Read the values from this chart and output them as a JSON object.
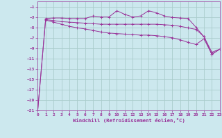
{
  "xlabel": "Windchill (Refroidissement éolien,°C)",
  "background_color": "#cce8ee",
  "grid_color": "#aacccc",
  "line_color": "#993399",
  "xlim": [
    0,
    23
  ],
  "ylim": [
    -21,
    0
  ],
  "yticks": [
    -1,
    -3,
    -5,
    -7,
    -9,
    -11,
    -13,
    -15,
    -17,
    -19,
    -21
  ],
  "xticks": [
    0,
    1,
    2,
    3,
    4,
    5,
    6,
    7,
    8,
    9,
    10,
    11,
    12,
    13,
    14,
    15,
    16,
    17,
    18,
    19,
    20,
    21,
    22,
    23
  ],
  "line1_x": [
    0,
    1,
    2,
    3,
    4,
    5,
    6,
    7,
    8,
    9,
    10,
    11,
    12,
    13,
    14,
    15,
    16,
    17,
    18,
    19,
    20,
    21,
    22,
    23
  ],
  "line1_y": [
    -21,
    -3.3,
    -3.2,
    -3.2,
    -3.3,
    -3.3,
    -3.3,
    -2.8,
    -3.0,
    -3.0,
    -1.8,
    -2.5,
    -3.0,
    -2.8,
    -1.8,
    -2.2,
    -2.8,
    -3.1,
    -3.2,
    -3.3,
    -5.0,
    -6.8,
    -10.2,
    -9.2
  ],
  "line2_x": [
    0,
    1,
    2,
    3,
    4,
    5,
    6,
    7,
    8,
    9,
    10,
    11,
    12,
    13,
    14,
    15,
    16,
    17,
    18,
    19,
    20,
    21,
    22,
    23
  ],
  "line2_y": [
    -21,
    -3.5,
    -3.7,
    -3.9,
    -4.0,
    -4.1,
    -4.2,
    -4.3,
    -4.4,
    -4.4,
    -4.4,
    -4.4,
    -4.4,
    -4.4,
    -4.4,
    -4.4,
    -4.5,
    -4.6,
    -4.8,
    -5.1,
    -5.4,
    -6.8,
    -9.8,
    -9.2
  ],
  "line3_x": [
    1,
    2,
    3,
    4,
    5,
    6,
    7,
    8,
    9,
    10,
    11,
    12,
    13,
    14,
    15,
    16,
    17,
    18,
    19,
    20,
    21,
    22,
    23
  ],
  "line3_y": [
    -3.6,
    -4.0,
    -4.4,
    -4.8,
    -5.1,
    -5.3,
    -5.6,
    -5.9,
    -6.1,
    -6.2,
    -6.3,
    -6.4,
    -6.5,
    -6.5,
    -6.6,
    -6.8,
    -7.0,
    -7.4,
    -7.9,
    -8.3,
    -7.2,
    -10.2,
    -9.2
  ]
}
